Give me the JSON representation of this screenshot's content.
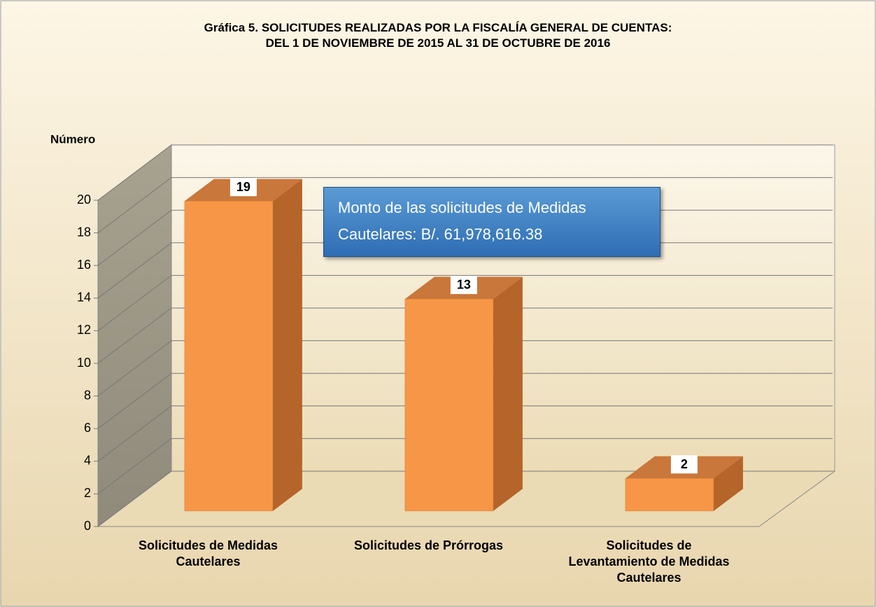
{
  "chart_data": {
    "type": "bar3d",
    "title": [
      "Gráfica  5. SOLICITUDES REALIZADAS POR LA FISCALÍA GENERAL DE CUENTAS:",
      "DEL 1 DE NOVIEMBRE DE 2015 AL 31 DE OCTUBRE DE 2016"
    ],
    "y_label": "Número",
    "categories": [
      "Solicitudes de Medidas Cautelares",
      "Solicitudes de Prórrogas",
      "Solicitudes de Levantamiento de Medidas Cautelares"
    ],
    "values": [
      19,
      13,
      2
    ],
    "color": "#f79646",
    "ylim": [
      0,
      20
    ],
    "yticks": [
      0,
      2,
      4,
      6,
      8,
      10,
      12,
      14,
      16,
      18,
      20
    ],
    "grid": true,
    "annotation": "Monto de las  solicitudes de Medidas Cautelares: B/. 61,978,616.38"
  }
}
